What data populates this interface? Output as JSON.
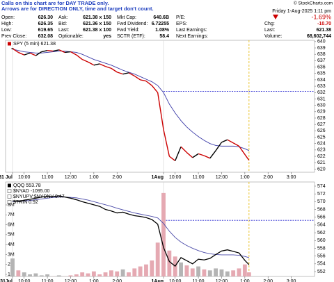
{
  "header": {
    "credit": "© StockCharts.com",
    "notice": [
      "Calls on this chart are for DAY TRADE only.",
      "Arrows are for DIRECTION ONLY, time and target don't count."
    ],
    "rows": [
      [
        [
          "Open:",
          "626.30"
        ],
        [
          "Ask:",
          "621.38 x 150"
        ],
        [
          "Mkt Cap:",
          "640.6B"
        ],
        [
          "P/E:"
        ]
      ],
      [
        [
          "High:",
          "626.35"
        ],
        [
          "Bid:",
          "621.36 x 150"
        ],
        [
          "Fwd Dividend:",
          "6.72255"
        ],
        [
          "EPS:"
        ]
      ],
      [
        [
          "Low:",
          "619.65"
        ],
        [
          "Last:",
          "621.38 x 100"
        ],
        [
          "Fwd Yield:",
          "1.08%"
        ],
        [
          "Last Earnings:"
        ]
      ],
      [
        [
          "Prev Close:",
          "632.08"
        ],
        [
          "Optionable:",
          "yes"
        ],
        [
          "SCTR (ETF):",
          "58.4"
        ],
        [
          "Next Earnings:"
        ]
      ]
    ],
    "date": "Friday 1-Aug-2025 1:11 pm",
    "change_pct": "-1.69%",
    "right_rows": [
      [
        "Chg:",
        "-10.70"
      ],
      [
        "Last:",
        "621.38"
      ],
      [
        "Volume:",
        "68,602,744"
      ]
    ]
  },
  "chart_data": [
    {
      "type": "line",
      "x": [
        0,
        0.25,
        0.5,
        0.75,
        1,
        1.25,
        1.5,
        1.75,
        2,
        2.25,
        2.5,
        2.75,
        3,
        3.25,
        3.5,
        3.75,
        4,
        4.25,
        4.5,
        4.75,
        5,
        5.25,
        5.5,
        5.75,
        6,
        6.25,
        6.5,
        6.75,
        7,
        7.25,
        7.5,
        7.75,
        8,
        8.25,
        8.5,
        8.75,
        9,
        9.25,
        9.5,
        9.75,
        10,
        10.18
      ],
      "series": [
        {
          "name": "SPY (5 min) 621.38",
          "style": "direction",
          "up_color": "#000000",
          "down_color": "#cc0000",
          "values": [
            638.9,
            638.3,
            637.9,
            638.2,
            637.8,
            638.4,
            638.6,
            638.5,
            638.7,
            638.3,
            638.4,
            637.9,
            637.2,
            636.8,
            636.3,
            636.5,
            636.1,
            635.8,
            635.2,
            634.9,
            635.1,
            634.6,
            634.0,
            633.8,
            633.1,
            632.0,
            626.2,
            622.0,
            621.3,
            623.5,
            622.6,
            621.8,
            622.4,
            622.1,
            621.7,
            622.9,
            624.2,
            624.6,
            624.1,
            623.6,
            622.3,
            621.38
          ]
        },
        {
          "color": "#3b3ba8",
          "values": [
            638.8,
            638.6,
            638.4,
            638.3,
            638.2,
            638.2,
            638.3,
            638.4,
            638.5,
            638.5,
            638.4,
            638.3,
            638.0,
            637.6,
            637.2,
            636.9,
            636.6,
            636.3,
            635.9,
            635.5,
            635.2,
            634.9,
            634.5,
            634.1,
            633.7,
            633.1,
            632.0,
            630.2,
            628.8,
            627.6,
            626.6,
            625.8,
            625.1,
            624.5,
            624.0,
            623.7,
            623.6,
            623.6,
            623.6,
            623.5,
            623.2,
            622.9
          ]
        }
      ],
      "xlim": [
        -0.3,
        13
      ],
      "xticks": [
        {
          "value": 0,
          "label": "31 Jul"
        },
        {
          "value": 0.5,
          "label": "10:00"
        },
        {
          "value": 1.5,
          "label": "11:00"
        },
        {
          "value": 2.5,
          "label": "12:00"
        },
        {
          "value": 3.5,
          "label": "1:00"
        },
        {
          "value": 4.5,
          "label": "2:00"
        },
        {
          "value": 6.5,
          "label": "1Aug"
        },
        {
          "value": 7,
          "label": "10:00"
        },
        {
          "value": 8,
          "label": "11:00"
        },
        {
          "value": 9,
          "label": "12:00"
        },
        {
          "value": 10,
          "label": "1:00"
        },
        {
          "value": 11,
          "label": "2:00"
        },
        {
          "value": 12,
          "label": "3:00"
        }
      ],
      "ylim": [
        619.5,
        640.2
      ],
      "yticks": [
        620,
        621,
        622,
        623,
        624,
        625,
        626,
        627,
        628,
        629,
        630,
        631,
        632,
        633,
        634,
        635,
        636,
        637,
        638,
        639,
        640
      ],
      "hlines": [
        {
          "value": 632.2,
          "from": 6.5,
          "color": "#2a2ad0"
        }
      ],
      "vline": {
        "value": 10.18,
        "color": "#e6b800"
      }
    },
    {
      "type": "line",
      "x": [
        0,
        0.25,
        0.5,
        0.75,
        1,
        1.25,
        1.5,
        1.75,
        2,
        2.25,
        2.5,
        2.75,
        3,
        3.25,
        3.5,
        3.75,
        4,
        4.25,
        4.5,
        4.75,
        5,
        5.25,
        5.5,
        5.75,
        6,
        6.25,
        6.5,
        6.75,
        7,
        7.25,
        7.5,
        7.75,
        8,
        8.25,
        8.5,
        8.75,
        9,
        9.25,
        9.5,
        9.75,
        10,
        10.18
      ],
      "series": [
        {
          "name": "QQQ 553.78",
          "color": "#000000",
          "values": [
            570.2,
            570.0,
            570.4,
            570.6,
            570.9,
            571.2,
            571.4,
            571.3,
            571.5,
            571.2,
            570.9,
            570.5,
            570.0,
            569.6,
            569.2,
            568.8,
            568.0,
            567.6,
            567.1,
            567.3,
            566.8,
            566.4,
            566.2,
            565.9,
            565.4,
            564.2,
            558.2,
            554.6,
            553.4,
            555.6,
            554.8,
            554.0,
            555.2,
            555.0,
            555.4,
            556.4,
            557.3,
            557.6,
            557.2,
            556.8,
            554.9,
            553.78
          ]
        },
        {
          "color": "#4a4aa8",
          "values": [
            570.0,
            570.1,
            570.2,
            570.3,
            570.5,
            570.7,
            570.9,
            571.1,
            571.2,
            571.2,
            571.1,
            571.0,
            570.7,
            570.4,
            570.0,
            569.6,
            569.2,
            568.8,
            568.3,
            567.9,
            567.5,
            567.1,
            566.8,
            566.5,
            566.2,
            565.8,
            564.4,
            562.4,
            560.8,
            559.6,
            558.7,
            558.0,
            557.4,
            556.9,
            556.6,
            556.4,
            556.3,
            556.3,
            556.3,
            556.2,
            555.9,
            555.6
          ]
        },
        {
          "kind": "bar",
          "axis": "y2",
          "up_color": "#b4b4b4",
          "down_color": "#e5a9b2",
          "values": [
            2.6,
            1.4,
            1.2,
            1.0,
            1.1,
            0.9,
            1.0,
            0.8,
            0.9,
            0.8,
            0.9,
            1.0,
            1.2,
            1.1,
            1.3,
            1.0,
            1.2,
            1.4,
            1.3,
            1.5,
            1.2,
            1.6,
            1.8,
            2.0,
            2.4,
            4.2,
            9.2,
            3.4,
            2.8,
            2.2,
            1.9,
            1.6,
            1.8,
            1.5,
            1.4,
            1.6,
            1.5,
            1.3,
            1.4,
            1.6,
            2.0,
            1.2
          ]
        }
      ],
      "overlay_labels": [
        "$NYAD -1095.00",
        "$NYUPV:$NYDNV 0.47",
        "$TRIN 0.92"
      ],
      "xlim": [
        -0.3,
        13
      ],
      "xticks": [
        {
          "value": 0,
          "label": "31Jul"
        },
        {
          "value": 0.5,
          "label": "10:00"
        },
        {
          "value": 1.5,
          "label": "11:00"
        },
        {
          "value": 2.5,
          "label": "12:00"
        },
        {
          "value": 3.5,
          "label": "1:00"
        },
        {
          "value": 4.5,
          "label": "2:00"
        },
        {
          "value": 6.5,
          "label": "1Aug"
        },
        {
          "value": 7,
          "label": "10:00"
        },
        {
          "value": 8,
          "label": "11:00"
        },
        {
          "value": 9,
          "label": "12:00"
        },
        {
          "value": 10,
          "label": "1:00"
        },
        {
          "value": 11,
          "label": "2:00"
        },
        {
          "value": 12,
          "label": "3:00"
        }
      ],
      "ylim": [
        550.75,
        575.07
      ],
      "yticks": [
        552,
        554,
        556,
        558,
        560,
        562,
        564,
        566,
        568,
        570,
        572,
        574
      ],
      "y2lim": [
        0.79,
        10.31
      ],
      "y2ticks": [
        {
          "value": 1,
          "label": "1M"
        },
        {
          "value": 2,
          "label": "2M"
        },
        {
          "value": 3,
          "label": "3M"
        },
        {
          "value": 4,
          "label": "4M"
        },
        {
          "value": 5,
          "label": "5M"
        },
        {
          "value": 6,
          "label": "6M"
        },
        {
          "value": 7,
          "label": "7M"
        },
        {
          "value": 8,
          "label": "8M"
        }
      ],
      "hlines": [
        {
          "value": 565.2,
          "from": 6.5,
          "color": "#2a2ad0"
        }
      ],
      "vline": {
        "value": 10.18,
        "color": "#e6b800"
      }
    }
  ]
}
